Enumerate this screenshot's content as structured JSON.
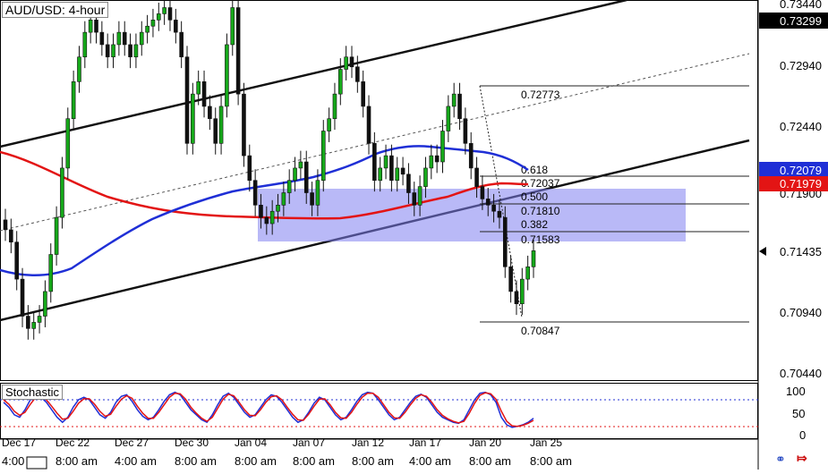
{
  "header": {
    "symbol_label": "AUD/USD: 4-hour"
  },
  "stochastic": {
    "label": "Stochastic",
    "ticks": [
      "100",
      "50",
      "0"
    ],
    "k": [
      70,
      60,
      45,
      40,
      55,
      75,
      85,
      80,
      70,
      55,
      40,
      30,
      40,
      60,
      75,
      80,
      75,
      60,
      45,
      38,
      50,
      70,
      82,
      85,
      72,
      55,
      42,
      35,
      40,
      55,
      72,
      85,
      90,
      85,
      70,
      55,
      45,
      35,
      30,
      45,
      65,
      82,
      88,
      80,
      65,
      50,
      40,
      45,
      60,
      75,
      85,
      82,
      70,
      55,
      40,
      30,
      35,
      50,
      68,
      80,
      75,
      60,
      45,
      35,
      40,
      55,
      72,
      85,
      90,
      88,
      75,
      60,
      45,
      35,
      40,
      55,
      70,
      82,
      86,
      80,
      65,
      50,
      40,
      35,
      30,
      28,
      35,
      55,
      75,
      88,
      90,
      85,
      70,
      40,
      25,
      20,
      22,
      25,
      30,
      38
    ],
    "d": [
      75,
      66,
      52,
      44,
      50,
      66,
      80,
      82,
      75,
      62,
      48,
      36,
      38,
      52,
      68,
      77,
      77,
      66,
      52,
      42,
      46,
      62,
      76,
      83,
      78,
      62,
      48,
      38,
      38,
      50,
      65,
      80,
      88,
      87,
      76,
      60,
      48,
      38,
      32,
      40,
      58,
      76,
      86,
      83,
      70,
      55,
      44,
      43,
      55,
      70,
      81,
      83,
      75,
      60,
      46,
      35,
      34,
      46,
      62,
      76,
      77,
      65,
      50,
      39,
      38,
      50,
      66,
      80,
      88,
      88,
      80,
      65,
      50,
      39,
      38,
      50,
      65,
      78,
      85,
      82,
      70,
      55,
      44,
      37,
      32,
      29,
      32,
      48,
      68,
      84,
      89,
      87,
      76,
      52,
      32,
      23,
      22,
      24,
      28,
      34
    ]
  },
  "price_axis": {
    "ticks": [
      "0.73440",
      "0.72940",
      "0.72440",
      "0.71900",
      "0.70940",
      "0.70440"
    ]
  },
  "price_badges": {
    "top": {
      "label": "0.73299",
      "bg": "#000000"
    },
    "blue_ma": {
      "label": "0.72079",
      "bg": "#1f2fd6"
    },
    "red_ma": {
      "label": "0.71979",
      "bg": "#e31414"
    },
    "current": {
      "label": "0.71435"
    }
  },
  "fibonacci": {
    "high": "0.72773",
    "level_618": "0.618",
    "price_618": "0.72037",
    "level_500": "0.500",
    "price_500": "0.71810",
    "level_382": "0.382",
    "price_382": "0.71583",
    "low": "0.70847"
  },
  "time_axis": {
    "dates": [
      "Dec 17",
      "Dec 22",
      "Dec 27",
      "Dec 30",
      "Jan 04",
      "Jan 07",
      "Jan 12",
      "Jan 17",
      "Jan 20",
      "Jan 25"
    ],
    "times": [
      "4:00",
      "8:00 am",
      "4:00 am",
      "8:00 am",
      "8:00 am",
      "8:00 am",
      "8:00 am",
      "4:00 am",
      "8:00 am",
      "8:00 am"
    ]
  },
  "chart_data": {
    "type": "candlestick",
    "symbol": "AUD/USD",
    "timeframe": "4-hour",
    "close": [
      0.716,
      0.715,
      0.712,
      0.709,
      0.708,
      0.7085,
      0.709,
      0.711,
      0.714,
      0.717,
      0.721,
      0.725,
      0.728,
      0.73,
      0.732,
      0.733,
      0.732,
      0.731,
      0.73,
      0.731,
      0.732,
      0.731,
      0.73,
      0.731,
      0.732,
      0.7325,
      0.733,
      0.7335,
      0.734,
      0.733,
      0.732,
      0.73,
      0.723,
      0.727,
      0.728,
      0.726,
      0.725,
      0.723,
      0.726,
      0.731,
      0.734,
      0.727,
      0.722,
      0.72,
      0.718,
      0.717,
      0.7165,
      0.7175,
      0.718,
      0.719,
      0.72,
      0.721,
      0.7215,
      0.719,
      0.718,
      0.72,
      0.724,
      0.725,
      0.727,
      0.729,
      0.73,
      0.7292,
      0.728,
      0.726,
      0.723,
      0.72,
      0.721,
      0.722,
      0.72,
      0.721,
      0.7205,
      0.719,
      0.718,
      0.7195,
      0.721,
      0.722,
      0.7215,
      0.724,
      0.726,
      0.727,
      0.725,
      0.723,
      0.721,
      0.7195,
      0.7185,
      0.718,
      0.7175,
      0.717,
      0.713,
      0.711,
      0.71,
      0.712,
      0.713,
      0.7143
    ],
    "moving_averages": [
      {
        "color": "#1f2fd6",
        "last": 0.72079
      },
      {
        "color": "#e31414",
        "last": 0.71979
      }
    ],
    "fib_retracement": {
      "high": 0.72773,
      "low": 0.70847,
      "levels": [
        {
          "ratio": 0.618,
          "price": 0.72037
        },
        {
          "ratio": 0.5,
          "price": 0.7181
        },
        {
          "ratio": 0.382,
          "price": 0.71583
        }
      ]
    },
    "axis_y_labels": [
      0.7344,
      0.7294,
      0.7244,
      0.719,
      0.7094,
      0.7044
    ],
    "grid": false
  }
}
